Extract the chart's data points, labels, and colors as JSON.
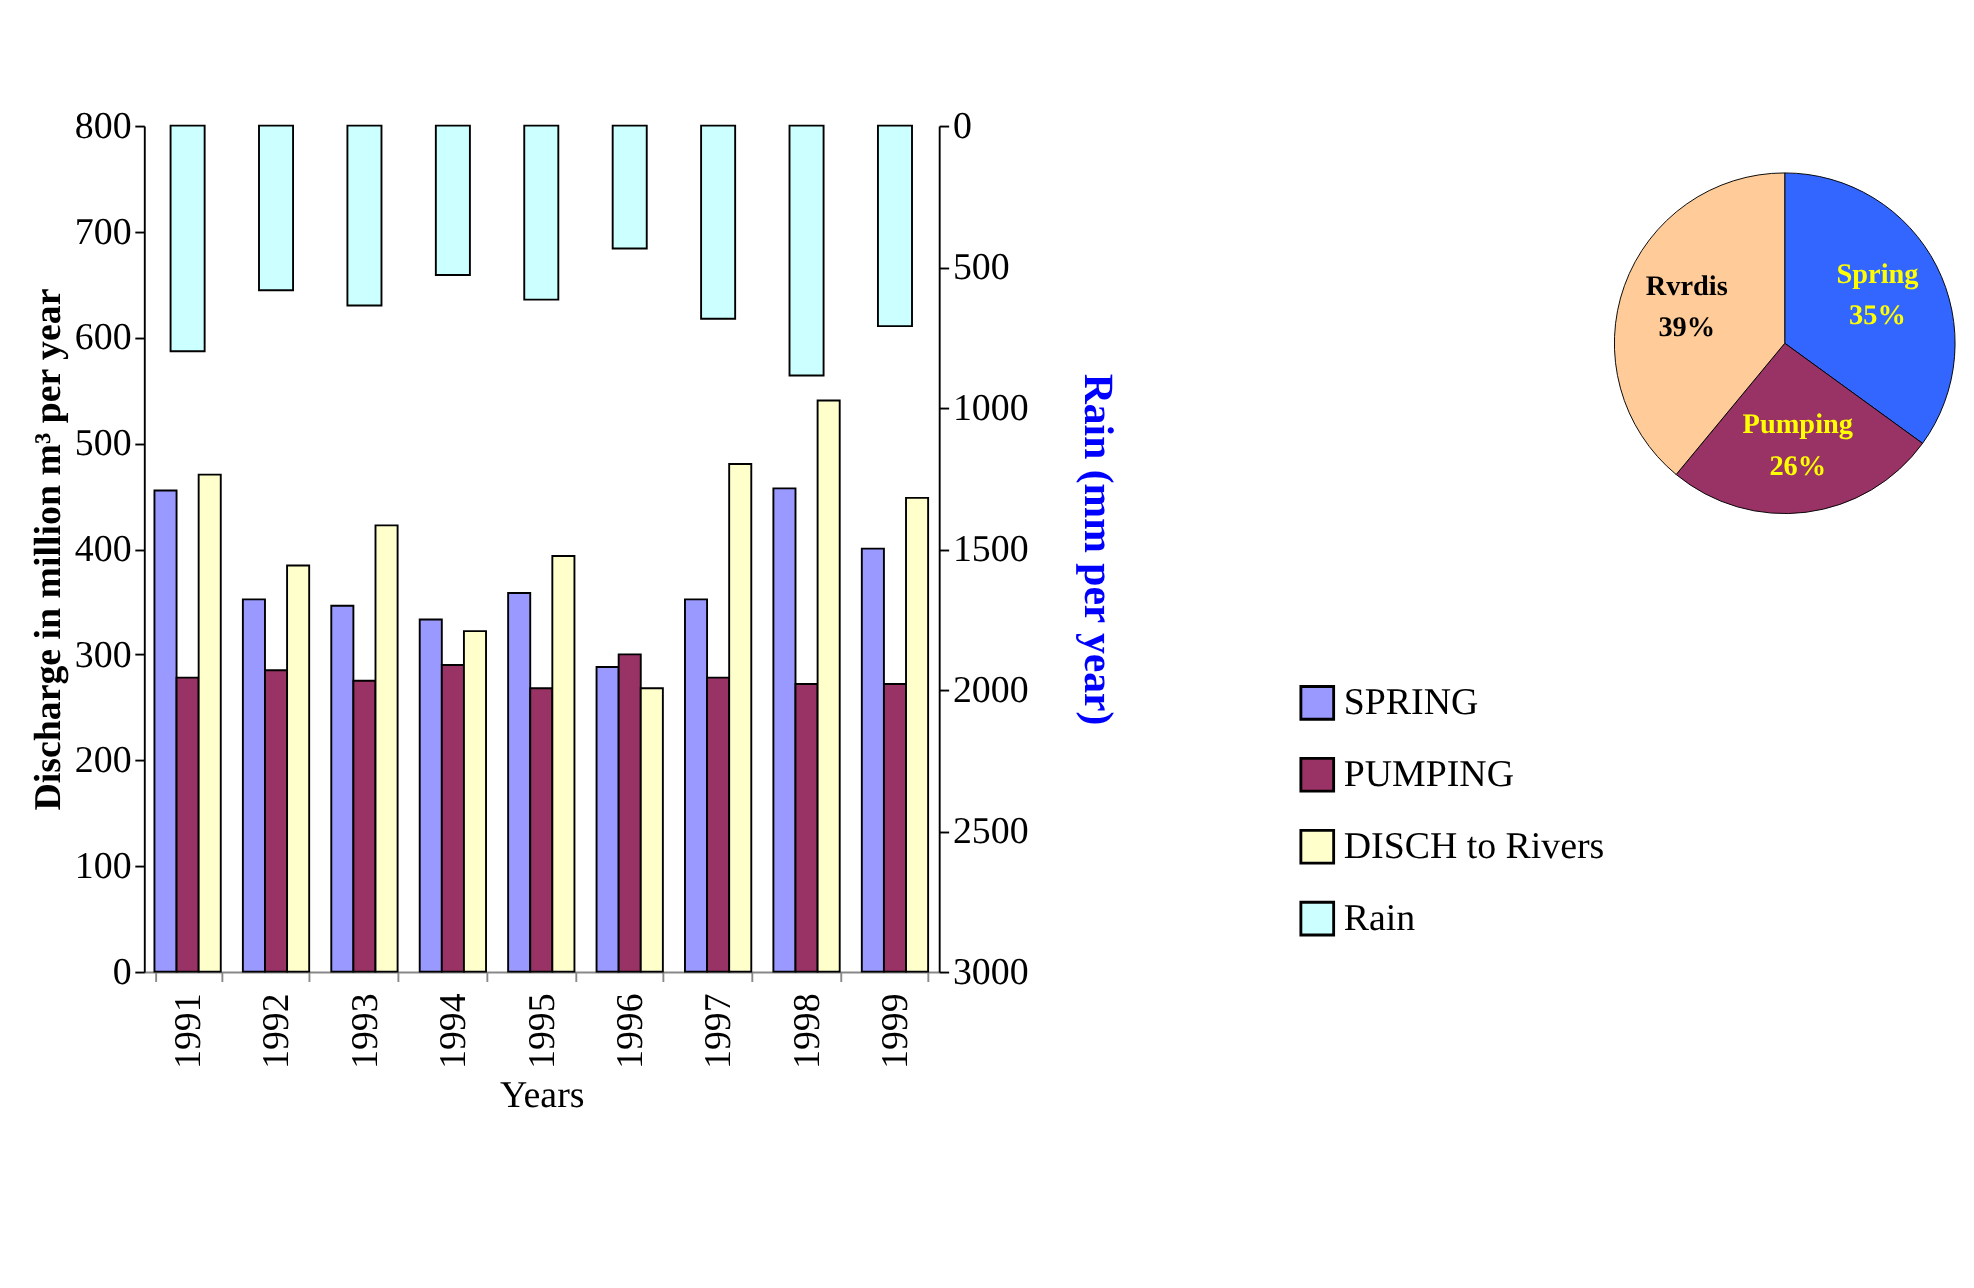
{
  "chart_data": [
    {
      "type": "bar",
      "xlabel": "Years",
      "ylabel": "Discharge in million m³ per year",
      "y2label": "Rain (mm per year)",
      "categories": [
        "1991",
        "1992",
        "1993",
        "1994",
        "1995",
        "1996",
        "1997",
        "1998",
        "1999"
      ],
      "series": [
        {
          "name": "SPRING",
          "color": "#9999ff",
          "values": [
            455,
            352,
            346,
            333,
            358,
            288,
            352,
            457,
            400
          ]
        },
        {
          "name": "PUMPING",
          "color": "#993366",
          "values": [
            278,
            285,
            275,
            290,
            268,
            300,
            278,
            272,
            272
          ]
        },
        {
          "name": "DISCH to Rivers",
          "color": "#ffffcc",
          "values": [
            470,
            384,
            422,
            322,
            393,
            268,
            480,
            540,
            448
          ]
        },
        {
          "name": "Rain",
          "color": "#ccffff",
          "axis": "y2",
          "values": [
            800,
            584,
            638,
            530,
            617,
            436,
            685,
            886,
            711
          ]
        }
      ],
      "ylim": [
        0,
        800
      ],
      "yticks": [
        0,
        100,
        200,
        300,
        400,
        500,
        600,
        700,
        800
      ],
      "y2lim": [
        3000,
        0
      ],
      "y2ticks": [
        0,
        500,
        1000,
        1500,
        2000,
        2500,
        3000
      ],
      "grid": false,
      "legend": "right"
    },
    {
      "type": "pie",
      "categories": [
        "Spring",
        "Pumping",
        "Rvrdis"
      ],
      "values": [
        35,
        26,
        39
      ],
      "colors": [
        "#3366ff",
        "#993366",
        "#ffcc99"
      ],
      "value_labels": [
        "35%",
        "26%",
        "39%"
      ],
      "legend": false
    }
  ]
}
